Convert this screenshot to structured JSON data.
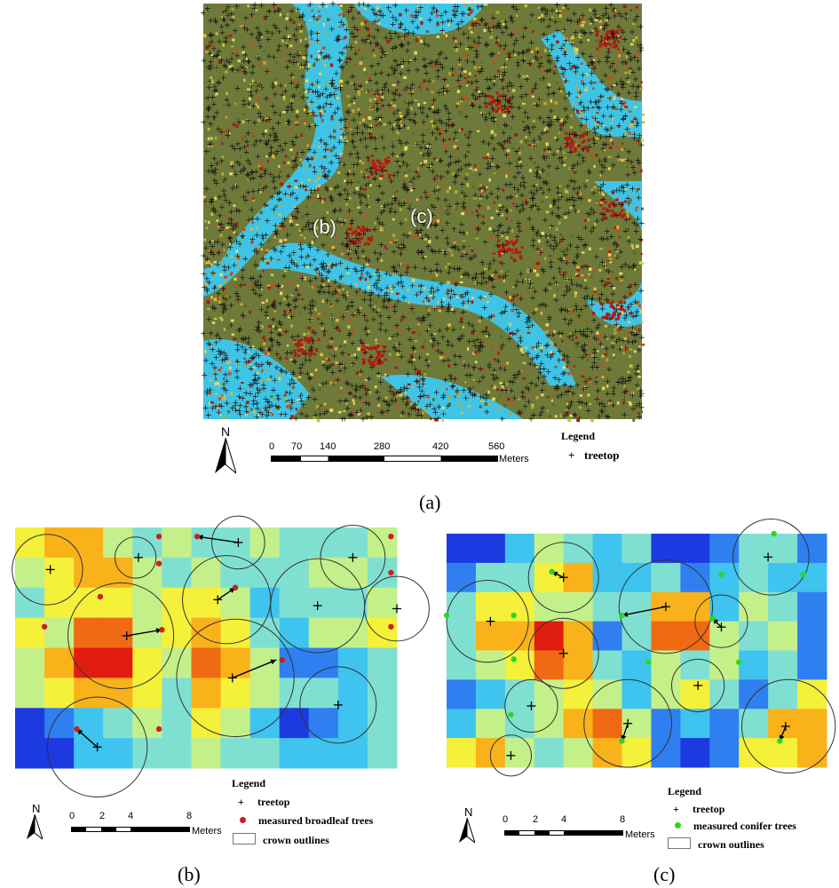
{
  "panel_a": {
    "caption": "(a)",
    "labels": [
      {
        "text": "(b)",
        "x": 370,
        "y": 262
      },
      {
        "text": "(c)",
        "x": 478,
        "y": 248
      }
    ],
    "north": "N",
    "scale_ticks": [
      "0",
      "70",
      "140",
      "280",
      "420",
      "560"
    ],
    "scale_unit": "Meters",
    "legend_title": "Legend",
    "legend_items": [
      "treetop"
    ]
  },
  "panel_b": {
    "caption": "(b)",
    "north": "N",
    "scale_ticks": [
      "0",
      "2",
      "4",
      "8"
    ],
    "scale_unit": "Meters",
    "legend_title": "Legend",
    "legend_items": [
      "treetop",
      "measured broadleaf trees",
      "crown outlines"
    ],
    "measured_color": "#cc1f1f",
    "grid": {
      "cols": 13,
      "rows": 8,
      "values": [
        [
          5,
          6,
          6,
          4,
          3,
          4,
          3,
          3,
          4,
          3,
          3,
          3,
          4
        ],
        [
          4,
          5,
          6,
          6,
          4,
          3,
          4,
          3,
          3,
          3,
          4,
          4,
          3
        ],
        [
          3,
          5,
          5,
          5,
          4,
          5,
          5,
          4,
          2,
          3,
          3,
          3,
          4
        ],
        [
          5,
          4,
          7,
          7,
          4,
          5,
          6,
          5,
          3,
          2,
          4,
          4,
          5
        ],
        [
          4,
          6,
          8,
          8,
          5,
          4,
          7,
          6,
          4,
          1,
          1,
          2,
          3
        ],
        [
          4,
          5,
          6,
          6,
          5,
          3,
          6,
          5,
          4,
          3,
          3,
          2,
          3
        ],
        [
          0,
          1,
          2,
          3,
          4,
          3,
          5,
          4,
          2,
          0,
          1,
          2,
          3
        ],
        [
          0,
          0,
          2,
          2,
          3,
          3,
          4,
          3,
          3,
          2,
          2,
          2,
          3
        ]
      ],
      "treetops": [
        [
          1.2,
          1.4
        ],
        [
          4.2,
          1.0
        ],
        [
          7.6,
          0.5
        ],
        [
          11.5,
          1.0
        ],
        [
          3.8,
          3.6
        ],
        [
          6.9,
          2.4
        ],
        [
          10.3,
          2.6
        ],
        [
          13.0,
          2.7
        ],
        [
          7.4,
          5.0
        ],
        [
          11.0,
          5.9
        ],
        [
          2.8,
          7.3
        ]
      ],
      "measured": [
        [
          2.9,
          2.3
        ],
        [
          5.0,
          3.4
        ],
        [
          4.9,
          0.3
        ],
        [
          6.2,
          0.3
        ],
        [
          4.9,
          1.2
        ],
        [
          7.5,
          2.0
        ],
        [
          1.0,
          3.3
        ],
        [
          12.8,
          0.3
        ],
        [
          12.8,
          1.5
        ],
        [
          12.8,
          3.3
        ],
        [
          9.1,
          4.4
        ],
        [
          2.1,
          6.7
        ],
        [
          4.9,
          6.7
        ]
      ],
      "arrows": [
        [
          3.8,
          3.6,
          5.0,
          3.4
        ],
        [
          6.9,
          2.4,
          7.5,
          2.0
        ],
        [
          7.4,
          5.0,
          8.9,
          4.4
        ],
        [
          2.8,
          7.3,
          2.1,
          6.7
        ],
        [
          7.6,
          0.5,
          6.2,
          0.3
        ]
      ],
      "crowns": [
        [
          1.1,
          1.4,
          1.2
        ],
        [
          4.1,
          1.0,
          0.7
        ],
        [
          7.6,
          0.5,
          0.9
        ],
        [
          11.5,
          1.0,
          1.1
        ],
        [
          3.6,
          3.6,
          1.8
        ],
        [
          7.2,
          2.4,
          1.5
        ],
        [
          10.3,
          2.6,
          1.6
        ],
        [
          13.0,
          2.7,
          1.1
        ],
        [
          7.5,
          5.0,
          2.0
        ],
        [
          11.0,
          5.9,
          1.3
        ],
        [
          2.8,
          7.3,
          1.7
        ]
      ]
    }
  },
  "panel_c": {
    "caption": "(c)",
    "north": "N",
    "scale_ticks": [
      "0",
      "2",
      "4",
      "8"
    ],
    "scale_unit": "Meters",
    "legend_title": "Legend",
    "legend_items": [
      "treetop",
      "measured conifer trees",
      "crown outlines"
    ],
    "measured_color": "#2bd62b",
    "grid": {
      "cols": 13,
      "rows": 8,
      "values": [
        [
          0,
          0,
          2,
          4,
          3,
          2,
          3,
          0,
          0,
          1,
          3,
          3,
          1
        ],
        [
          1,
          3,
          3,
          5,
          6,
          2,
          2,
          3,
          1,
          2,
          3,
          2,
          2
        ],
        [
          3,
          5,
          5,
          4,
          4,
          3,
          3,
          6,
          6,
          2,
          4,
          3,
          1
        ],
        [
          3,
          6,
          6,
          8,
          6,
          1,
          3,
          7,
          7,
          4,
          3,
          4,
          1
        ],
        [
          3,
          4,
          5,
          7,
          6,
          3,
          2,
          4,
          3,
          4,
          2,
          3,
          1
        ],
        [
          1,
          2,
          3,
          4,
          5,
          4,
          2,
          4,
          5,
          3,
          1,
          3,
          5
        ],
        [
          2,
          4,
          3,
          4,
          6,
          7,
          4,
          1,
          2,
          1,
          3,
          6,
          6
        ],
        [
          5,
          6,
          4,
          3,
          4,
          6,
          5,
          1,
          0,
          1,
          5,
          5,
          6
        ]
      ],
      "treetops": [
        [
          1.5,
          3.0
        ],
        [
          4.0,
          1.5
        ],
        [
          4.0,
          4.1
        ],
        [
          7.5,
          2.5
        ],
        [
          9.4,
          3.2
        ],
        [
          11.0,
          0.8
        ],
        [
          8.6,
          5.2
        ],
        [
          2.9,
          5.9
        ],
        [
          6.2,
          6.5
        ],
        [
          11.6,
          6.6
        ],
        [
          2.2,
          7.6
        ]
      ],
      "measured": [
        [
          0.0,
          2.8
        ],
        [
          2.3,
          2.8
        ],
        [
          2.3,
          4.3
        ],
        [
          3.6,
          1.3
        ],
        [
          6.0,
          2.8
        ],
        [
          6.9,
          4.4
        ],
        [
          9.1,
          2.9
        ],
        [
          9.4,
          1.4
        ],
        [
          10.0,
          4.4
        ],
        [
          11.2,
          0.0
        ],
        [
          12.2,
          1.4
        ],
        [
          2.2,
          6.2
        ],
        [
          6.0,
          7.1
        ],
        [
          11.4,
          7.1
        ]
      ],
      "arrows": [
        [
          4.0,
          1.5,
          3.6,
          1.3
        ],
        [
          7.5,
          2.5,
          6.0,
          2.8
        ],
        [
          9.4,
          3.2,
          9.1,
          2.9
        ],
        [
          6.2,
          6.5,
          6.0,
          7.1
        ],
        [
          11.6,
          6.6,
          11.4,
          7.1
        ]
      ],
      "crowns": [
        [
          1.4,
          3.0,
          1.4
        ],
        [
          4.0,
          1.5,
          1.2
        ],
        [
          4.0,
          4.1,
          1.2
        ],
        [
          7.5,
          2.5,
          1.6
        ],
        [
          9.4,
          3.0,
          0.9
        ],
        [
          11.1,
          0.8,
          1.3
        ],
        [
          8.6,
          5.2,
          0.9
        ],
        [
          2.9,
          5.9,
          0.9
        ],
        [
          6.2,
          6.5,
          1.5
        ],
        [
          11.7,
          6.6,
          1.6
        ],
        [
          2.2,
          7.6,
          0.7
        ]
      ]
    }
  }
}
